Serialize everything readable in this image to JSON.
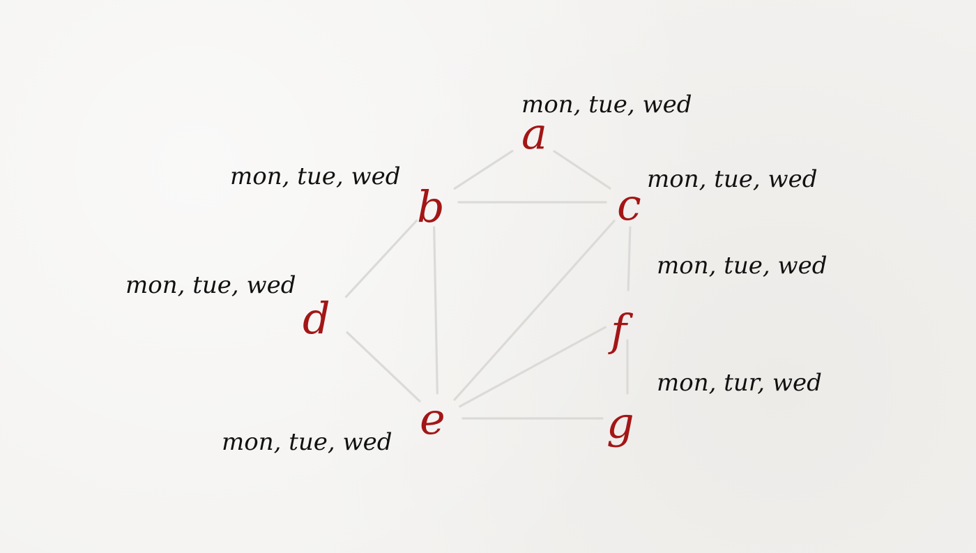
{
  "colors": {
    "background": "#f3f2f0",
    "edge": "#dcdad7",
    "node": "#a31616",
    "domain_text": "#111111"
  },
  "graph": {
    "nodes": [
      {
        "id": "a",
        "label": "a",
        "domain": "mon, tue, wed"
      },
      {
        "id": "b",
        "label": "b",
        "domain": "mon, tue, wed"
      },
      {
        "id": "c",
        "label": "c",
        "domain": "mon, tue, wed"
      },
      {
        "id": "d",
        "label": "d",
        "domain": "mon, tue, wed"
      },
      {
        "id": "e",
        "label": "e",
        "domain": "mon, tue, wed"
      },
      {
        "id": "f",
        "label": "f",
        "domain": "mon, tue, wed"
      },
      {
        "id": "g",
        "label": "g",
        "domain": "mon, tur, wed"
      }
    ],
    "edges": [
      {
        "from": "a",
        "to": "b"
      },
      {
        "from": "a",
        "to": "c"
      },
      {
        "from": "b",
        "to": "c"
      },
      {
        "from": "b",
        "to": "d"
      },
      {
        "from": "b",
        "to": "e"
      },
      {
        "from": "c",
        "to": "e"
      },
      {
        "from": "c",
        "to": "f"
      },
      {
        "from": "d",
        "to": "e"
      },
      {
        "from": "e",
        "to": "f"
      },
      {
        "from": "e",
        "to": "g"
      },
      {
        "from": "f",
        "to": "g"
      }
    ]
  }
}
